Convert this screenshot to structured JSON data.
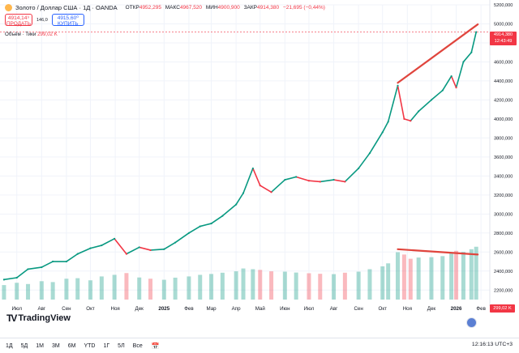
{
  "header": {
    "title": "Золото / Доллар США · 1Д · OANDA",
    "open_label": "ОТКР",
    "open": "4952,295",
    "high_label": "МАКС",
    "high": "4967,520",
    "low_label": "МИН",
    "low": "4900,900",
    "close_label": "ЗАКР",
    "close": "4914,380",
    "change": "−21,695 (−0,44%)"
  },
  "trade": {
    "sell_price": "4914,14⁹",
    "sell_label": "ПРОДАТЬ",
    "spread": "146,0",
    "buy_price": "4915,60⁰",
    "buy_label": "КУПИТЬ"
  },
  "volume_indicator": {
    "label": "Объём · Тики",
    "value": "299,02 K"
  },
  "price_badge": {
    "price": "4914,380",
    "countdown": "12:43:49"
  },
  "volume_badge": "299,02 K",
  "logo_text": "TradingView",
  "timeframes": [
    "1Д",
    "5Д",
    "1М",
    "3М",
    "6М",
    "YTD",
    "1Г",
    "5Л",
    "Все"
  ],
  "clock": "12:16:13 UTC+3",
  "colors": {
    "up": "#089981",
    "down": "#f23645",
    "trendline": "#e0453d"
  },
  "chart_data": {
    "type": "line",
    "title": "",
    "xlabel": "",
    "ylabel": "",
    "ylim": [
      2100,
      5200
    ],
    "y_ticks": [
      "5200,000",
      "5000,000",
      "4800,000",
      "4600,000",
      "4400,000",
      "4200,000",
      "4000,000",
      "3800,000",
      "3600,000",
      "3400,000",
      "3200,000",
      "3000,000",
      "2800,000",
      "2600,000",
      "2400,000",
      "2200,000"
    ],
    "y_tick_values": [
      5200,
      5000,
      4800,
      4600,
      4400,
      4200,
      4000,
      3800,
      3600,
      3400,
      3200,
      3000,
      2800,
      2600,
      2400,
      2200
    ],
    "x_ticks": [
      "Июл",
      "Авг",
      "Сен",
      "Окт",
      "Ноя",
      "Дек",
      "2025",
      "Фев",
      "Мар",
      "Апр",
      "Май",
      "Июн",
      "Июл",
      "Авг",
      "Сен",
      "Окт",
      "Ноя",
      "Дек",
      "2026",
      "Фев"
    ],
    "x_tick_values": [
      "2024-07-01",
      "2024-08-01",
      "2024-09-01",
      "2024-10-01",
      "2024-11-01",
      "2024-12-01",
      "2025-01-01",
      "2025-02-01",
      "2025-03-01",
      "2025-04-01",
      "2025-05-01",
      "2025-06-01",
      "2025-07-01",
      "2025-08-01",
      "2025-09-01",
      "2025-10-01",
      "2025-11-01",
      "2025-12-01",
      "2026-01-01",
      "2026-02-01"
    ],
    "x": [
      "2024-06-15",
      "2024-07-01",
      "2024-07-15",
      "2024-08-01",
      "2024-08-15",
      "2024-09-01",
      "2024-09-15",
      "2024-10-01",
      "2024-10-15",
      "2024-10-31",
      "2024-11-15",
      "2024-12-01",
      "2024-12-15",
      "2025-01-01",
      "2025-01-15",
      "2025-02-01",
      "2025-02-15",
      "2025-03-01",
      "2025-03-15",
      "2025-04-01",
      "2025-04-10",
      "2025-04-22",
      "2025-05-01",
      "2025-05-15",
      "2025-06-01",
      "2025-06-15",
      "2025-07-01",
      "2025-07-15",
      "2025-08-01",
      "2025-08-15",
      "2025-09-01",
      "2025-09-15",
      "2025-10-01",
      "2025-10-08",
      "2025-10-20",
      "2025-10-28",
      "2025-11-05",
      "2025-11-15",
      "2025-12-01",
      "2025-12-15",
      "2025-12-26",
      "2026-01-01",
      "2026-01-10",
      "2026-01-20",
      "2026-01-26"
    ],
    "series": [
      {
        "values": [
          2310,
          2330,
          2420,
          2440,
          2500,
          2500,
          2580,
          2640,
          2670,
          2740,
          2580,
          2650,
          2620,
          2630,
          2700,
          2800,
          2870,
          2900,
          2980,
          3100,
          3220,
          3480,
          3300,
          3230,
          3360,
          3390,
          3350,
          3340,
          3360,
          3340,
          3480,
          3640,
          3860,
          3970,
          4350,
          4000,
          3980,
          4080,
          4200,
          4300,
          4450,
          4330,
          4600,
          4700,
          4914
        ]
      }
    ],
    "volume": {
      "ylim": [
        0,
        330
      ],
      "values": [
        82,
        95,
        88,
        104,
        99,
        118,
        121,
        109,
        131,
        140,
        150,
        125,
        118,
        112,
        124,
        131,
        140,
        145,
        152,
        160,
        176,
        172,
        168,
        160,
        158,
        153,
        149,
        146,
        144,
        152,
        158,
        172,
        188,
        205,
        268,
        255,
        231,
        238,
        240,
        246,
        262,
        276,
        270,
        285,
        299.02
      ]
    },
    "trendlines": [
      {
        "name": "",
        "from": [
          "2025-10-20",
          4380
        ],
        "to": [
          "2026-01-28",
          4995
        ]
      }
    ],
    "volume_trendlines": [
      {
        "name": "",
        "from": [
          "2025-10-20",
          285
        ],
        "to": [
          "2026-01-28",
          255
        ]
      }
    ]
  }
}
